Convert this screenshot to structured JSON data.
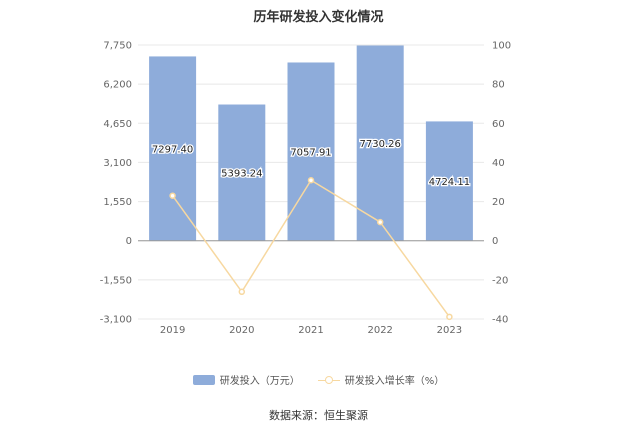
{
  "chart_data": {
    "type": "bar",
    "title": "历年研发投入变化情况",
    "categories": [
      "2019",
      "2020",
      "2021",
      "2022",
      "2023"
    ],
    "series": [
      {
        "name": "研发投入（万元）",
        "type": "bar",
        "axis": "left",
        "values": [
          7297.4,
          5393.24,
          7057.91,
          7730.26,
          4724.11
        ],
        "labels": [
          "7297.40",
          "5393.24",
          "7057.91",
          "7730.26",
          "4724.11"
        ]
      },
      {
        "name": "研发投入增长率（%）",
        "type": "line",
        "axis": "right",
        "values": [
          23.0,
          -26.1,
          30.9,
          9.5,
          -38.9
        ]
      }
    ],
    "y_left": {
      "ylim": [
        -3100,
        7750
      ],
      "ticks": [
        "7,750",
        "6,200",
        "4,650",
        "3,100",
        "1,550",
        "0",
        "-1,550",
        "-3,100"
      ]
    },
    "y_right": {
      "ylim": [
        -40,
        100
      ],
      "ticks": [
        "100",
        "80",
        "60",
        "40",
        "20",
        "0",
        "-20",
        "-40"
      ]
    },
    "legend": "bottom",
    "colors": {
      "bar": "#8eacda",
      "line": "#f7d8a0",
      "grid": "#e8e8e8",
      "axis": "#999999"
    }
  },
  "source": "数据来源：恒生聚源"
}
